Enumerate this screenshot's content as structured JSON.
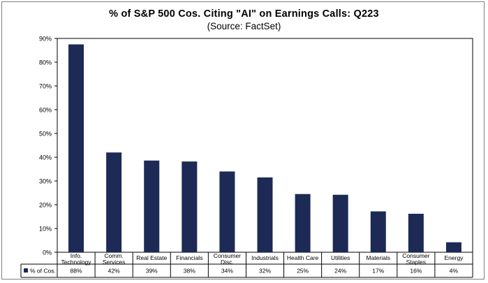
{
  "chart_data": {
    "type": "bar",
    "title": "% of S&P 500 Cos. Citing \"AI\" on Earnings Calls: Q223",
    "subtitle": "(Source: FactSet)",
    "categories": [
      [
        "Info.",
        "Technology"
      ],
      [
        "Comm.",
        "Services"
      ],
      [
        "Real Estate"
      ],
      [
        "Financials"
      ],
      [
        "Consumer",
        "Disc."
      ],
      [
        "Industrials"
      ],
      [
        "Health Care"
      ],
      [
        "Utilities"
      ],
      [
        "Materials"
      ],
      [
        "Consumer",
        "Staples"
      ],
      [
        "Energy"
      ]
    ],
    "series": [
      {
        "name": "% of Cos.",
        "values": [
          87.5,
          42,
          38.6,
          38.2,
          34,
          31.5,
          24.5,
          24.2,
          17.2,
          16.2,
          4.2
        ],
        "labels": [
          "88%",
          "42%",
          "39%",
          "38%",
          "34%",
          "32%",
          "25%",
          "24%",
          "17%",
          "16%",
          "4%"
        ]
      }
    ],
    "yticks": [
      "0%",
      "10%",
      "20%",
      "30%",
      "40%",
      "50%",
      "60%",
      "70%",
      "80%",
      "90%"
    ],
    "ylim": [
      0,
      90
    ],
    "bar_color": "#1c2a55",
    "grid": false,
    "legend": "data-table"
  }
}
